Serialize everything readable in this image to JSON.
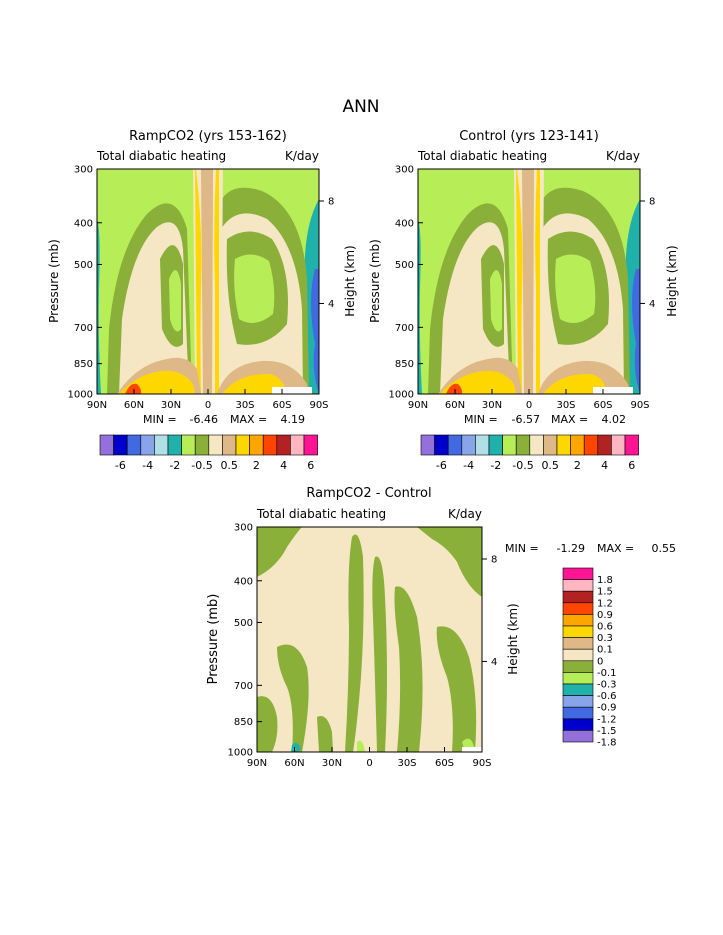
{
  "page_title": "ANN",
  "palette_main": [
    "#9370db",
    "#0000cd",
    "#4169e1",
    "#87a5e8",
    "#b0e0e6",
    "#20b2aa",
    "#b7ee58",
    "#8ab03a",
    "#f5e6c4",
    "#deb887",
    "#ffd700",
    "#ffa500",
    "#ff4500",
    "#b22222",
    "#ffb6c1",
    "#ff1493"
  ],
  "colorbar_top": {
    "tick_labels": [
      "-6",
      "-4",
      "-2",
      "-0.5",
      "0.5",
      "2",
      "4",
      "6"
    ]
  },
  "colorbar_diff": {
    "labels_top_to_bottom": [
      "1.8",
      "1.5",
      "1.2",
      "0.9",
      "0.6",
      "0.3",
      "0.1",
      "0",
      "-0.1",
      "-0.3",
      "-0.6",
      "-0.9",
      "-1.2",
      "-1.5",
      "-1.8"
    ],
    "colors_top_to_bottom": [
      "#ff1493",
      "#ffb6c1",
      "#b22222",
      "#ff4500",
      "#ffa500",
      "#ffd700",
      "#deb887",
      "#f5e6c4",
      "#8ab03a",
      "#b7ee58",
      "#20b2aa",
      "#87a5e8",
      "#4169e1",
      "#0000cd",
      "#9370db"
    ]
  },
  "chart_data": [
    {
      "type": "heatmap",
      "title": "RampCO2 (yrs 153-162)",
      "subtitle_left": "Total diabatic heating",
      "subtitle_right": "K/day",
      "ylabel": "Pressure (mb)",
      "ylabel_right": "Height (km)",
      "x_ticks": [
        "90N",
        "60N",
        "30N",
        "0",
        "30S",
        "60S",
        "90S"
      ],
      "y_ticks": [
        "300",
        "400",
        "500",
        "700",
        "850",
        "1000"
      ],
      "y_ticks_right": [
        "8",
        "4"
      ],
      "ylim": [
        1000,
        300
      ],
      "y_scale": "log",
      "min_label": "MIN =",
      "min_value": "-6.46",
      "max_label": "MAX =",
      "max_value": "4.19"
    },
    {
      "type": "heatmap",
      "title": "Control (yrs 123-141)",
      "subtitle_left": "Total diabatic heating",
      "subtitle_right": "K/day",
      "ylabel": "Pressure (mb)",
      "ylabel_right": "Height (km)",
      "x_ticks": [
        "90N",
        "60N",
        "30N",
        "0",
        "30S",
        "60S",
        "90S"
      ],
      "y_ticks": [
        "300",
        "400",
        "500",
        "700",
        "850",
        "1000"
      ],
      "y_ticks_right": [
        "8",
        "4"
      ],
      "ylim": [
        1000,
        300
      ],
      "y_scale": "log",
      "min_label": "MIN =",
      "min_value": "-6.57",
      "max_label": "MAX =",
      "max_value": "4.02"
    },
    {
      "type": "heatmap",
      "title": "RampCO2 - Control",
      "subtitle_left": "Total diabatic heating",
      "subtitle_right": "K/day",
      "ylabel": "Pressure (mb)",
      "ylabel_right": "Height (km)",
      "x_ticks": [
        "90N",
        "60N",
        "30N",
        "0",
        "30S",
        "60S",
        "90S"
      ],
      "y_ticks": [
        "300",
        "400",
        "500",
        "700",
        "850",
        "1000"
      ],
      "y_ticks_right": [
        "8",
        "4"
      ],
      "ylim": [
        1000,
        300
      ],
      "y_scale": "log",
      "min_label": "MIN =",
      "min_value": "-1.29",
      "max_label": "MAX =",
      "max_value": "0.55"
    }
  ]
}
